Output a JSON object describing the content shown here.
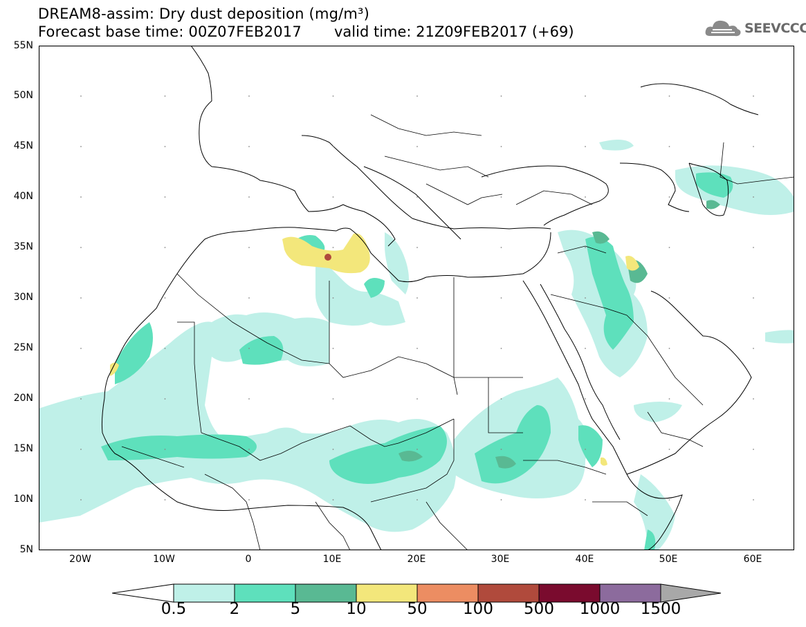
{
  "header": {
    "title": "DREAM8-assim: Dry dust deposition (mg/m³)",
    "base_time": "Forecast base time: 00Z07FEB2017",
    "valid_time": "valid time: 21Z09FEB2017 (+69)"
  },
  "logo": {
    "text": "SEEVCCC",
    "icon": "cloud-logo-icon"
  },
  "axes": {
    "lat_labels": [
      "55N",
      "50N",
      "45N",
      "40N",
      "35N",
      "30N",
      "25N",
      "20N",
      "15N",
      "10N",
      "5N"
    ],
    "lon_labels": [
      "20W",
      "10W",
      "0",
      "10E",
      "20E",
      "30E",
      "40E",
      "50E",
      "60E"
    ]
  },
  "legend": {
    "labels": [
      "0.5",
      "2",
      "5",
      "10",
      "50",
      "100",
      "500",
      "1000",
      "1500"
    ],
    "colors": [
      "#ffffff",
      "#bff0e8",
      "#5ee0bc",
      "#59b993",
      "#f3e77b",
      "#ec8d62",
      "#b04a3c",
      "#7a0b2e",
      "#8c6b9d",
      "#a8a8a8"
    ]
  }
}
